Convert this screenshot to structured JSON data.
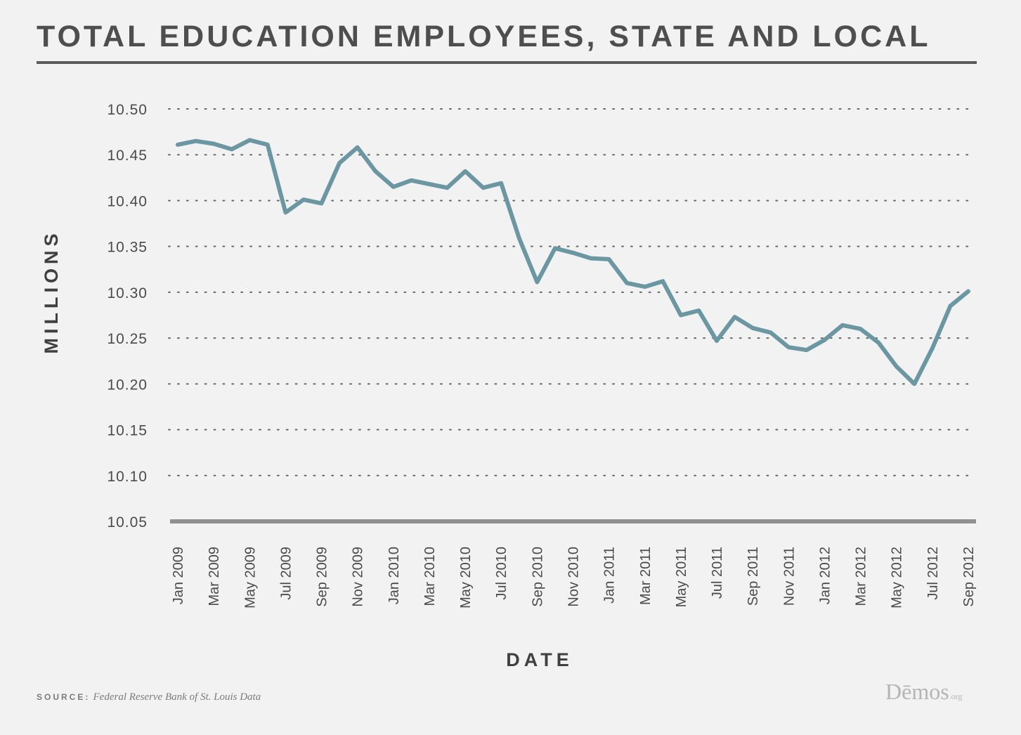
{
  "title": "TOTAL EDUCATION EMPLOYEES, STATE AND LOCAL",
  "source": {
    "key": "SOURCE:",
    "text": "Federal Reserve Bank of St. Louis Data"
  },
  "logo": {
    "name": "Dēmos",
    "suffix": ".org"
  },
  "colors": {
    "line": "#6a97a2",
    "baseline": "#8f908f",
    "grid": "#666766",
    "background": "#f1f2f1"
  },
  "chart_data": {
    "type": "line",
    "title": "TOTAL EDUCATION EMPLOYEES, STATE AND LOCAL",
    "xlabel": "DATE",
    "ylabel": "MILLIONS",
    "ylim": [
      10.05,
      10.5
    ],
    "yticks": [
      "10.50",
      "10.45",
      "10.40",
      "10.35",
      "10.30",
      "10.25",
      "10.20",
      "10.15",
      "10.10",
      "10.05"
    ],
    "grid": true,
    "grid_style": "dotted",
    "x_tick_labels": [
      "Jan 2009",
      "Mar 2009",
      "May 2009",
      "Jul 2009",
      "Sep 2009",
      "Nov 2009",
      "Jan 2010",
      "Mar 2010",
      "May 2010",
      "Jul 2010",
      "Sep 2010",
      "Nov 2010",
      "Jan 2011",
      "Mar 2011",
      "May 2011",
      "Jul 2011",
      "Sep 2011",
      "Nov 2011",
      "Jan 2012",
      "Mar 2012",
      "May 2012",
      "Jul 2012",
      "Sep 2012"
    ],
    "x": [
      "Jan 2009",
      "Feb 2009",
      "Mar 2009",
      "Apr 2009",
      "May 2009",
      "Jun 2009",
      "Jul 2009",
      "Aug 2009",
      "Sep 2009",
      "Oct 2009",
      "Nov 2009",
      "Dec 2009",
      "Jan 2010",
      "Feb 2010",
      "Mar 2010",
      "Apr 2010",
      "May 2010",
      "Jun 2010",
      "Jul 2010",
      "Aug 2010",
      "Sep 2010",
      "Oct 2010",
      "Nov 2010",
      "Dec 2010",
      "Jan 2011",
      "Feb 2011",
      "Mar 2011",
      "Apr 2011",
      "May 2011",
      "Jun 2011",
      "Jul 2011",
      "Aug 2011",
      "Sep 2011",
      "Oct 2011",
      "Nov 2011",
      "Dec 2011",
      "Jan 2012",
      "Feb 2012",
      "Mar 2012",
      "Apr 2012",
      "May 2012",
      "Jun 2012",
      "Jul 2012",
      "Aug 2012",
      "Sep 2012"
    ],
    "series": [
      {
        "values": [
          10.461,
          10.465,
          10.462,
          10.456,
          10.466,
          10.461,
          10.387,
          10.401,
          10.397,
          10.441,
          10.458,
          10.432,
          10.415,
          10.422,
          10.418,
          10.414,
          10.432,
          10.414,
          10.419,
          10.359,
          10.311,
          10.348,
          10.343,
          10.337,
          10.336,
          10.31,
          10.306,
          10.312,
          10.275,
          10.28,
          10.247,
          10.273,
          10.261,
          10.256,
          10.24,
          10.237,
          10.248,
          10.264,
          10.26,
          10.245,
          10.219,
          10.2,
          10.239,
          10.285,
          10.301
        ]
      }
    ]
  }
}
